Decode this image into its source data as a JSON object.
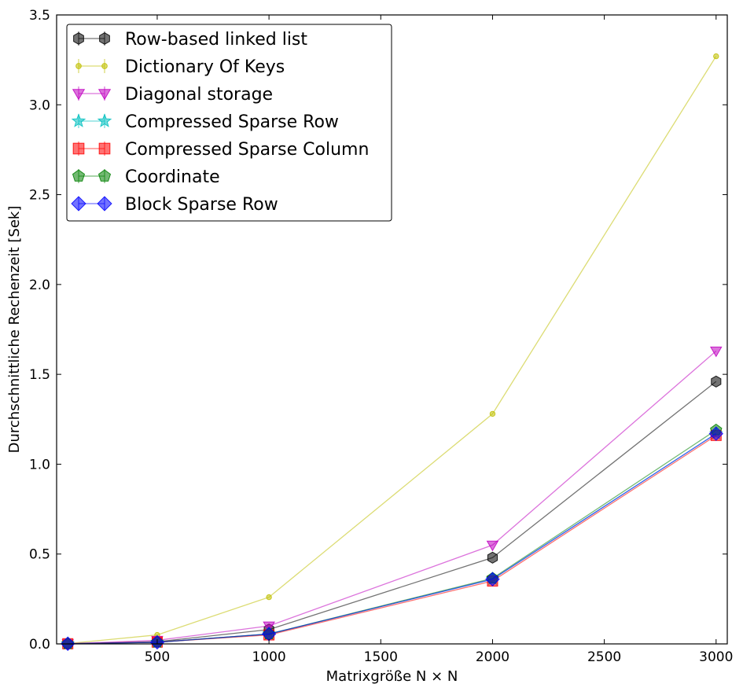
{
  "chart_data": {
    "type": "line",
    "xlabel": "Matrixgröße N × N",
    "ylabel": "Durchschnittliche Rechenzeit [Sek]",
    "xlim": [
      50,
      3050
    ],
    "ylim": [
      0,
      3.5
    ],
    "x_ticks": [
      500,
      1000,
      1500,
      2000,
      2500,
      3000
    ],
    "y_ticks": [
      0.0,
      0.5,
      1.0,
      1.5,
      2.0,
      2.5,
      3.0,
      3.5
    ],
    "x_tick_labels": [
      "500",
      "1000",
      "1500",
      "2000",
      "2500",
      "3000"
    ],
    "y_tick_labels": [
      "0.0",
      "0.5",
      "1.0",
      "1.5",
      "2.0",
      "2.5",
      "3.0",
      "3.5"
    ],
    "grid": false,
    "legend_position": "top-left",
    "x": [
      100,
      500,
      1000,
      2000,
      3000
    ],
    "series": [
      {
        "name": "Row-based linked list",
        "color": "#000000",
        "marker": "hexagon",
        "values": [
          0.001,
          0.012,
          0.08,
          0.48,
          1.46
        ]
      },
      {
        "name": "Dictionary Of Keys",
        "color": "#bfbf00",
        "marker": "circle",
        "values": [
          0.002,
          0.05,
          0.26,
          1.28,
          3.27
        ]
      },
      {
        "name": "Diagonal storage",
        "color": "#bf00bf",
        "marker": "triangle-down",
        "values": [
          0.001,
          0.02,
          0.1,
          0.55,
          1.63
        ]
      },
      {
        "name": "Compressed Sparse Row",
        "color": "#00bfbf",
        "marker": "star",
        "values": [
          0.001,
          0.009,
          0.055,
          0.36,
          1.17
        ]
      },
      {
        "name": "Compressed Sparse Column",
        "color": "#ff0000",
        "marker": "square",
        "values": [
          0.001,
          0.01,
          0.05,
          0.35,
          1.16
        ]
      },
      {
        "name": "Coordinate",
        "color": "#008000",
        "marker": "pentagon",
        "values": [
          0.001,
          0.009,
          0.055,
          0.365,
          1.19
        ]
      },
      {
        "name": "Block Sparse Row",
        "color": "#0000ff",
        "marker": "diamond",
        "values": [
          0.001,
          0.009,
          0.055,
          0.36,
          1.17
        ]
      }
    ]
  }
}
